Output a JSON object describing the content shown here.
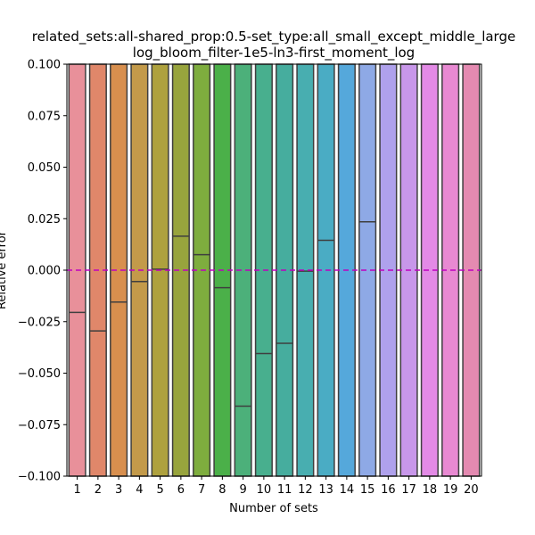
{
  "chart_data": {
    "type": "bar",
    "title_lines": [
      "related_sets:all-shared_prop:0.5-set_type:all_small_except_middle_large",
      "log_bloom_filter-1e5-ln3-first_moment_log"
    ],
    "xlabel": "Number of sets",
    "ylabel": "Relative error",
    "ylim": [
      -0.1,
      0.1
    ],
    "yticks": [
      -0.1,
      -0.075,
      -0.05,
      -0.025,
      0.0,
      0.025,
      0.05,
      0.075,
      0.1
    ],
    "ytick_labels": [
      "−0.100",
      "−0.075",
      "−0.050",
      "−0.025",
      "0.000",
      "0.025",
      "0.050",
      "0.075",
      "0.100"
    ],
    "categories": [
      "1",
      "2",
      "3",
      "4",
      "5",
      "6",
      "7",
      "8",
      "9",
      "10",
      "11",
      "12",
      "13",
      "14",
      "15",
      "16",
      "17",
      "18",
      "19",
      "20"
    ],
    "median_values": [
      -0.0205,
      -0.0295,
      -0.0155,
      -0.0055,
      0.0005,
      0.0165,
      0.0075,
      -0.0085,
      -0.066,
      -0.0405,
      -0.0355,
      -0.0005,
      0.0145,
      null,
      0.0235,
      null,
      null,
      null,
      null,
      null
    ],
    "colors": [
      "#e8909a",
      "#e0876a",
      "#d88f4e",
      "#c39a4a",
      "#aea13e",
      "#98a43d",
      "#7ead3e",
      "#4bb049",
      "#4cb07a",
      "#48af8e",
      "#46ad9e",
      "#48aeb0",
      "#4aacc4",
      "#55a8db",
      "#8ea9e6",
      "#afa1ec",
      "#c897ea",
      "#e38ae6",
      "#e889d2",
      "#e48ab1"
    ],
    "reference_line": {
      "y": 0.0,
      "color": "#bf00bf",
      "style": "dashed"
    },
    "grid": false
  }
}
